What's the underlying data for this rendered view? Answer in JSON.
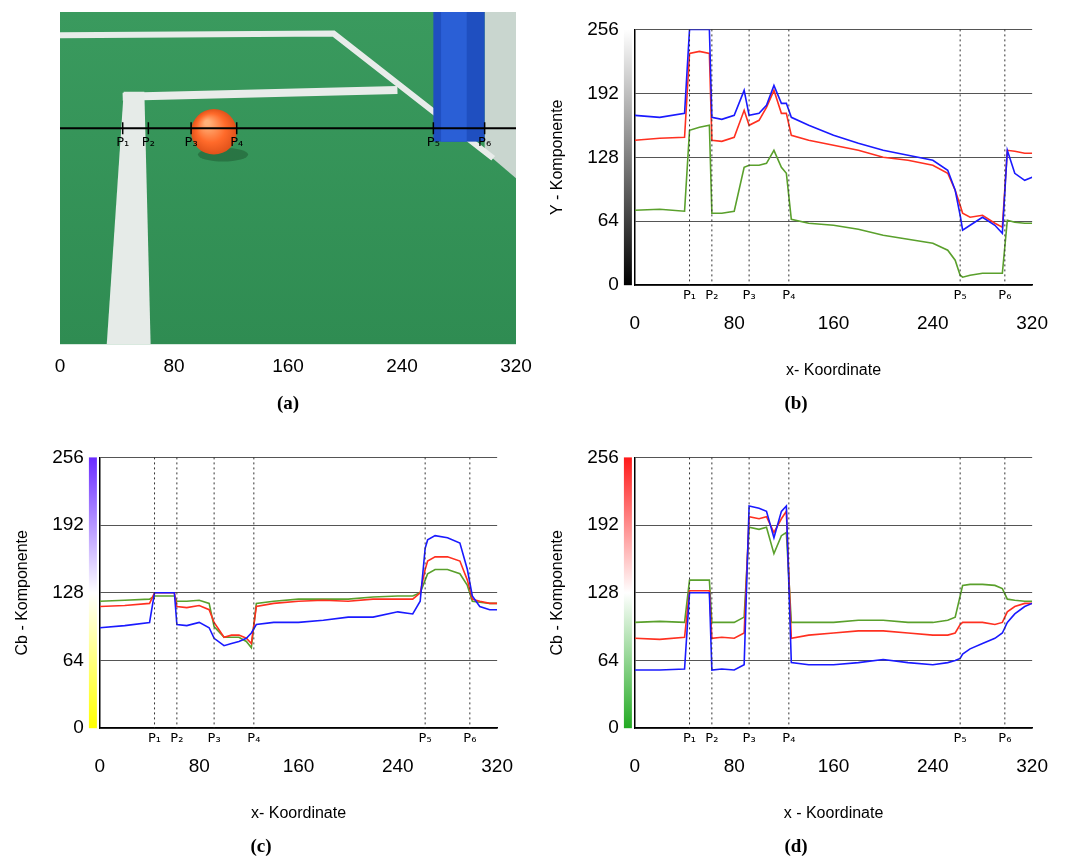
{
  "chart_data": [
    {
      "type": "image",
      "title": "(a)",
      "xlim": [
        0,
        320
      ],
      "xticks": [
        0,
        80,
        160,
        240,
        320
      ],
      "markers": [
        {
          "label": "P₁",
          "x": 44
        },
        {
          "label": "P₂",
          "x": 62
        },
        {
          "label": "P₃",
          "x": 92
        },
        {
          "label": "P₄",
          "x": 124
        },
        {
          "label": "P₅",
          "x": 262
        },
        {
          "label": "P₆",
          "x": 298
        }
      ]
    },
    {
      "type": "line",
      "title": "(b)",
      "x_label": "x- Koordinate",
      "y_label": "Y - Komponente",
      "xlim": [
        0,
        320
      ],
      "xticks": [
        0,
        80,
        160,
        240,
        320
      ],
      "ylim": [
        0,
        256
      ],
      "yticks": [
        0,
        64,
        128,
        192,
        256
      ],
      "grid": "y",
      "markers": [
        {
          "label": "P₁",
          "x": 44
        },
        {
          "label": "P₂",
          "x": 62
        },
        {
          "label": "P₃",
          "x": 92
        },
        {
          "label": "P₄",
          "x": 124
        },
        {
          "label": "P₅",
          "x": 262
        },
        {
          "label": "P₆",
          "x": 298
        }
      ],
      "x": [
        0,
        20,
        40,
        44,
        52,
        60,
        62,
        70,
        80,
        88,
        92,
        100,
        106,
        112,
        118,
        122,
        126,
        140,
        160,
        180,
        200,
        220,
        240,
        252,
        258,
        262,
        264,
        270,
        280,
        290,
        296,
        300,
        306,
        314,
        320
      ],
      "series": [
        {
          "color": "#1a1aff",
          "values": [
            170,
            168,
            172,
            256,
            256,
            256,
            168,
            166,
            170,
            195,
            170,
            172,
            180,
            200,
            182,
            182,
            168,
            160,
            150,
            142,
            135,
            130,
            125,
            115,
            95,
            70,
            55,
            60,
            68,
            60,
            52,
            135,
            112,
            105,
            108
          ]
        },
        {
          "color": "#ff3020",
          "values": [
            145,
            147,
            148,
            232,
            234,
            232,
            145,
            144,
            148,
            175,
            160,
            165,
            178,
            195,
            172,
            172,
            150,
            145,
            140,
            135,
            128,
            125,
            120,
            112,
            95,
            80,
            72,
            68,
            70,
            62,
            58,
            135,
            134,
            132,
            132
          ]
        },
        {
          "color": "#5aa02c",
          "values": [
            75,
            76,
            74,
            155,
            158,
            160,
            72,
            72,
            74,
            118,
            120,
            120,
            122,
            135,
            118,
            112,
            66,
            62,
            60,
            56,
            50,
            46,
            42,
            35,
            25,
            10,
            8,
            10,
            12,
            12,
            12,
            65,
            63,
            62,
            62
          ]
        }
      ]
    },
    {
      "type": "line",
      "title": "(c)",
      "x_label": "x- Koordinate",
      "y_label": "Cb - Komponente",
      "xlim": [
        0,
        320
      ],
      "xticks": [
        0,
        80,
        160,
        240,
        320
      ],
      "ylim": [
        0,
        256
      ],
      "yticks": [
        0,
        64,
        128,
        192,
        256
      ],
      "grid": "y",
      "markers": [
        {
          "label": "P₁",
          "x": 44
        },
        {
          "label": "P₂",
          "x": 62
        },
        {
          "label": "P₃",
          "x": 92
        },
        {
          "label": "P₄",
          "x": 124
        },
        {
          "label": "P₅",
          "x": 262
        },
        {
          "label": "P₆",
          "x": 298
        }
      ],
      "x": [
        0,
        20,
        40,
        44,
        52,
        60,
        62,
        70,
        80,
        88,
        92,
        100,
        106,
        112,
        118,
        122,
        126,
        140,
        160,
        180,
        200,
        220,
        240,
        252,
        258,
        262,
        264,
        270,
        280,
        290,
        296,
        300,
        306,
        314,
        320
      ],
      "series": [
        {
          "color": "#1a1aff",
          "values": [
            95,
            97,
            100,
            128,
            128,
            128,
            98,
            97,
            100,
            95,
            85,
            78,
            80,
            82,
            85,
            90,
            98,
            100,
            100,
            102,
            105,
            105,
            110,
            108,
            120,
            170,
            178,
            182,
            180,
            175,
            150,
            125,
            115,
            112,
            112
          ]
        },
        {
          "color": "#ff3020",
          "values": [
            115,
            116,
            118,
            128,
            128,
            128,
            115,
            114,
            116,
            112,
            100,
            86,
            88,
            88,
            85,
            80,
            115,
            118,
            120,
            121,
            120,
            122,
            122,
            122,
            128,
            150,
            158,
            162,
            162,
            158,
            140,
            122,
            120,
            118,
            118
          ]
        },
        {
          "color": "#5aa02c",
          "values": [
            120,
            121,
            122,
            125,
            125,
            125,
            120,
            120,
            121,
            118,
            96,
            86,
            86,
            86,
            82,
            76,
            118,
            120,
            122,
            122,
            122,
            124,
            125,
            125,
            128,
            140,
            146,
            150,
            150,
            146,
            135,
            120,
            119,
            118,
            118
          ]
        }
      ]
    },
    {
      "type": "line",
      "title": "(d)",
      "x_label": "x - Koordinate",
      "y_label": "Cb - Komponente",
      "xlim": [
        0,
        320
      ],
      "xticks": [
        0,
        80,
        160,
        240,
        320
      ],
      "ylim": [
        0,
        256
      ],
      "yticks": [
        0,
        64,
        128,
        192,
        256
      ],
      "grid": "y",
      "markers": [
        {
          "label": "P₁",
          "x": 44
        },
        {
          "label": "P₂",
          "x": 62
        },
        {
          "label": "P₃",
          "x": 92
        },
        {
          "label": "P₄",
          "x": 124
        },
        {
          "label": "P₅",
          "x": 262
        },
        {
          "label": "P₆",
          "x": 298
        }
      ],
      "x": [
        0,
        20,
        40,
        44,
        52,
        60,
        62,
        70,
        80,
        88,
        92,
        100,
        106,
        112,
        118,
        122,
        126,
        140,
        160,
        180,
        200,
        220,
        240,
        252,
        258,
        262,
        264,
        270,
        280,
        290,
        296,
        300,
        306,
        314,
        320
      ],
      "series": [
        {
          "color": "#1a1aff",
          "values": [
            55,
            55,
            56,
            128,
            128,
            128,
            55,
            56,
            55,
            60,
            210,
            208,
            205,
            180,
            205,
            210,
            62,
            60,
            60,
            62,
            65,
            62,
            60,
            62,
            64,
            66,
            70,
            75,
            80,
            85,
            90,
            100,
            108,
            115,
            118
          ]
        },
        {
          "color": "#ff3020",
          "values": [
            85,
            84,
            86,
            130,
            130,
            130,
            85,
            86,
            85,
            90,
            200,
            198,
            200,
            185,
            198,
            205,
            85,
            88,
            90,
            92,
            92,
            90,
            88,
            88,
            90,
            98,
            100,
            100,
            100,
            98,
            100,
            110,
            115,
            118,
            118
          ]
        },
        {
          "color": "#5aa02c",
          "values": [
            100,
            101,
            100,
            140,
            140,
            140,
            100,
            100,
            100,
            105,
            190,
            188,
            190,
            165,
            182,
            185,
            100,
            100,
            100,
            102,
            102,
            100,
            100,
            102,
            105,
            125,
            135,
            136,
            136,
            135,
            132,
            122,
            121,
            120,
            120
          ]
        }
      ]
    }
  ]
}
